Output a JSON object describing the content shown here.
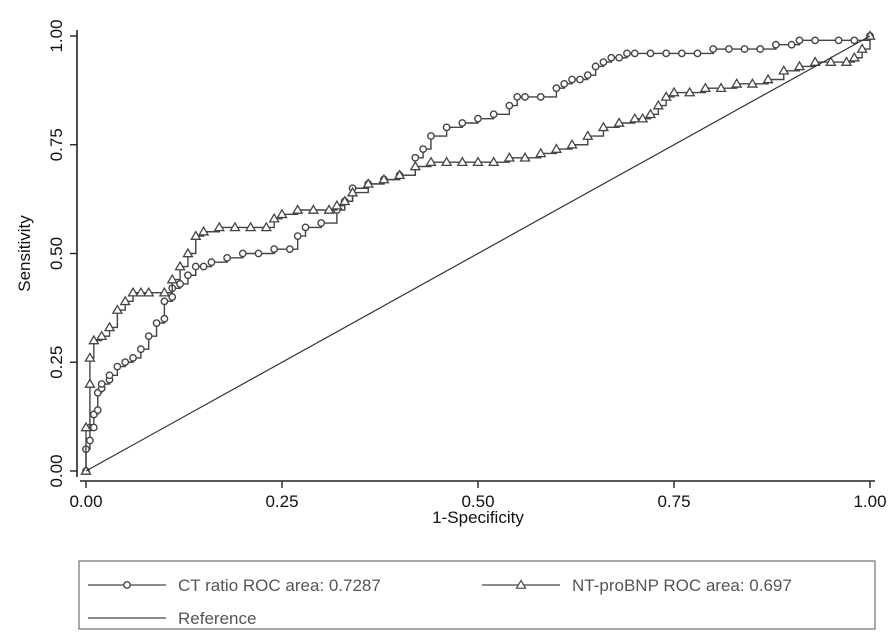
{
  "colors": {
    "axis": "#222222",
    "series": "#444444",
    "reference": "#333333",
    "legend_text": "#555555",
    "legend_border": "#555555"
  },
  "chart_data": {
    "type": "line",
    "xlabel": "1-Specificity",
    "ylabel": "Sensitivity",
    "xlim": [
      0,
      1
    ],
    "ylim": [
      0,
      1
    ],
    "x_ticks": [
      "0.00",
      "0.25",
      "0.50",
      "0.75",
      "1.00"
    ],
    "y_ticks": [
      "0.00",
      "0.25",
      "0.50",
      "0.75",
      "1.00"
    ],
    "grid": false,
    "legend_position": "bottom",
    "legend": [
      "CT ratio ROC area: 0.7287",
      "NT-proBNP ROC area: 0.697",
      "Reference"
    ],
    "series": [
      {
        "name": "CT ratio ROC area: 0.7287",
        "marker": "circle",
        "x": [
          0,
          0,
          0.005,
          0.005,
          0.01,
          0.01,
          0.015,
          0.015,
          0.02,
          0.02,
          0.03,
          0.03,
          0.04,
          0.05,
          0.06,
          0.07,
          0.08,
          0.09,
          0.1,
          0.1,
          0.11,
          0.11,
          0.12,
          0.13,
          0.14,
          0.15,
          0.16,
          0.18,
          0.2,
          0.22,
          0.24,
          0.26,
          0.27,
          0.28,
          0.3,
          0.32,
          0.33,
          0.34,
          0.36,
          0.38,
          0.4,
          0.42,
          0.43,
          0.44,
          0.46,
          0.48,
          0.5,
          0.52,
          0.54,
          0.55,
          0.56,
          0.58,
          0.6,
          0.61,
          0.62,
          0.63,
          0.64,
          0.65,
          0.66,
          0.67,
          0.68,
          0.69,
          0.7,
          0.72,
          0.74,
          0.76,
          0.78,
          0.8,
          0.82,
          0.84,
          0.86,
          0.88,
          0.9,
          0.91,
          0.93,
          0.96,
          0.98,
          1.0
        ],
        "y": [
          0,
          0.05,
          0.07,
          0.1,
          0.1,
          0.13,
          0.14,
          0.18,
          0.19,
          0.2,
          0.21,
          0.22,
          0.24,
          0.25,
          0.26,
          0.28,
          0.31,
          0.34,
          0.35,
          0.39,
          0.4,
          0.42,
          0.43,
          0.45,
          0.47,
          0.47,
          0.48,
          0.49,
          0.5,
          0.5,
          0.51,
          0.51,
          0.54,
          0.56,
          0.57,
          0.6,
          0.62,
          0.65,
          0.66,
          0.67,
          0.68,
          0.72,
          0.74,
          0.77,
          0.79,
          0.8,
          0.81,
          0.82,
          0.84,
          0.86,
          0.86,
          0.86,
          0.88,
          0.89,
          0.9,
          0.9,
          0.91,
          0.93,
          0.94,
          0.95,
          0.95,
          0.96,
          0.96,
          0.96,
          0.96,
          0.96,
          0.96,
          0.97,
          0.97,
          0.97,
          0.97,
          0.98,
          0.98,
          0.99,
          0.99,
          0.99,
          0.99,
          1.0
        ]
      },
      {
        "name": "NT-proBNP ROC area: 0.697",
        "marker": "triangle",
        "x": [
          0,
          0,
          0.005,
          0.005,
          0.01,
          0.02,
          0.03,
          0.04,
          0.05,
          0.06,
          0.07,
          0.08,
          0.1,
          0.11,
          0.12,
          0.13,
          0.14,
          0.15,
          0.17,
          0.19,
          0.21,
          0.23,
          0.24,
          0.25,
          0.27,
          0.29,
          0.31,
          0.32,
          0.33,
          0.34,
          0.36,
          0.38,
          0.4,
          0.42,
          0.44,
          0.46,
          0.48,
          0.5,
          0.52,
          0.54,
          0.56,
          0.58,
          0.6,
          0.62,
          0.64,
          0.66,
          0.68,
          0.7,
          0.71,
          0.72,
          0.73,
          0.74,
          0.75,
          0.77,
          0.79,
          0.81,
          0.83,
          0.85,
          0.87,
          0.89,
          0.91,
          0.93,
          0.95,
          0.97,
          0.98,
          0.99,
          1.0
        ],
        "y": [
          0,
          0.1,
          0.2,
          0.26,
          0.3,
          0.31,
          0.33,
          0.37,
          0.39,
          0.41,
          0.41,
          0.41,
          0.41,
          0.44,
          0.47,
          0.5,
          0.54,
          0.55,
          0.56,
          0.56,
          0.56,
          0.56,
          0.58,
          0.59,
          0.6,
          0.6,
          0.6,
          0.61,
          0.62,
          0.64,
          0.66,
          0.67,
          0.68,
          0.7,
          0.71,
          0.71,
          0.71,
          0.71,
          0.71,
          0.72,
          0.72,
          0.73,
          0.74,
          0.75,
          0.77,
          0.79,
          0.8,
          0.81,
          0.81,
          0.82,
          0.84,
          0.86,
          0.87,
          0.87,
          0.88,
          0.88,
          0.89,
          0.89,
          0.9,
          0.92,
          0.93,
          0.94,
          0.94,
          0.94,
          0.95,
          0.97,
          1.0
        ]
      },
      {
        "name": "Reference",
        "marker": "none",
        "x": [
          0,
          1
        ],
        "y": [
          0,
          1
        ]
      }
    ]
  }
}
